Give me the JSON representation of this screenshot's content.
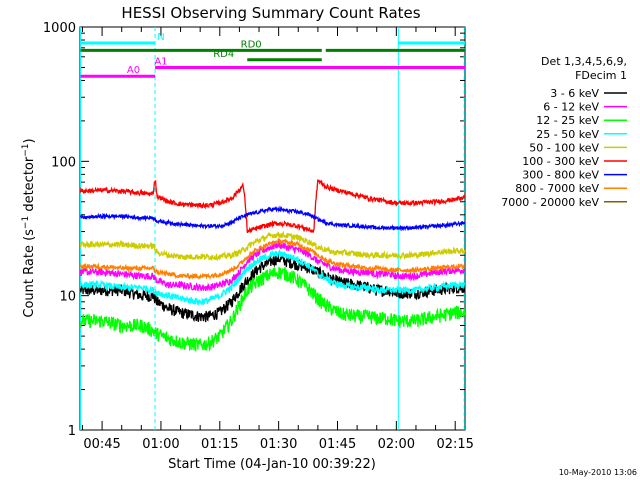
{
  "chart_data": {
    "type": "line",
    "title": "HESSI Observing Summary Count Rates",
    "xlabel": "Start Time (04-Jan-10 00:39:22)",
    "ylabel_main": "Count Rate (s",
    "ylabel_sup1": "−1",
    "ylabel_mid": " detector",
    "ylabel_sup2": "−1",
    "ylabel_end": ")",
    "yscale": "log",
    "ylim": [
      1,
      1000
    ],
    "xlim_minutes": [
      39.37,
      137.5
    ],
    "x_ticks": [
      {
        "label": "00:45",
        "minutes": 45
      },
      {
        "label": "01:00",
        "minutes": 60
      },
      {
        "label": "01:15",
        "minutes": 75
      },
      {
        "label": "01:30",
        "minutes": 90
      },
      {
        "label": "01:45",
        "minutes": 105
      },
      {
        "label": "02:00",
        "minutes": 120
      },
      {
        "label": "02:15",
        "minutes": 135
      }
    ],
    "y_ticks": [
      {
        "label": "1",
        "value": 1
      },
      {
        "label": "10",
        "value": 10
      },
      {
        "label": "100",
        "value": 100
      },
      {
        "label": "1000",
        "value": 1000
      }
    ],
    "legend_header": [
      "Det 1,3,4,5,6,9,",
      "FDecim 1"
    ],
    "legend_position": "top-right outside",
    "footer_date": "10-May-2010 13:06",
    "series": [
      {
        "name": "3 - 6 keV",
        "color": "#000000",
        "x": [
          39.5,
          45,
          50,
          55,
          58,
          59,
          62,
          65,
          70,
          72,
          75,
          78,
          80,
          82,
          85,
          88,
          90,
          92,
          95,
          98,
          100,
          102,
          104,
          106,
          110,
          113,
          115,
          118,
          120,
          125,
          130,
          135,
          137.5
        ],
        "y": [
          11,
          11,
          11,
          10,
          10,
          9,
          8,
          7.5,
          7,
          7,
          7.5,
          9,
          11,
          13,
          16,
          18,
          19,
          18,
          17,
          16,
          15,
          14,
          13,
          12.5,
          12,
          11.5,
          11,
          11,
          10.5,
          10.5,
          11,
          11.5,
          11.5
        ]
      },
      {
        "name": "6 - 12 keV",
        "color": "#ff00ff",
        "x": [
          39.5,
          45,
          50,
          55,
          58,
          59,
          62,
          65,
          70,
          72,
          75,
          78,
          80,
          82,
          85,
          88,
          90,
          92,
          95,
          98,
          100,
          102,
          104,
          106,
          110,
          113,
          115,
          118,
          120,
          125,
          130,
          135,
          137.5
        ],
        "y": [
          15,
          15,
          14.5,
          14,
          14,
          13,
          12,
          12,
          11.5,
          11.5,
          12,
          13,
          15,
          18,
          21,
          23,
          24,
          23,
          22,
          20,
          18,
          17,
          16,
          15.5,
          15,
          15,
          14.5,
          14.5,
          14,
          14,
          15,
          15.5,
          15.5
        ]
      },
      {
        "name": "12 - 25 keV",
        "color": "#00ff00",
        "x": [
          39.5,
          45,
          50,
          55,
          58,
          59,
          62,
          65,
          70,
          72,
          75,
          78,
          80,
          82,
          85,
          88,
          90,
          92,
          95,
          98,
          100,
          102,
          104,
          106,
          110,
          113,
          115,
          118,
          120,
          125,
          130,
          135,
          137.5
        ],
        "y": [
          6.5,
          6.5,
          6,
          6,
          5.5,
          5.2,
          4.8,
          4.5,
          4.3,
          4.4,
          5,
          6.5,
          8.5,
          11,
          13,
          14.5,
          15,
          14.5,
          13,
          11,
          9.5,
          8.5,
          7.8,
          7.3,
          7,
          7,
          6.8,
          6.8,
          6.5,
          6.5,
          7,
          7.5,
          7.5
        ]
      },
      {
        "name": "25 - 50 keV",
        "color": "#00ffff",
        "x": [
          39.5,
          45,
          50,
          55,
          58,
          59,
          62,
          65,
          70,
          72,
          75,
          78,
          80,
          82,
          85,
          88,
          90,
          92,
          95,
          98,
          100,
          102,
          104,
          106,
          110,
          113,
          115,
          118,
          120,
          125,
          130,
          135,
          137.5
        ],
        "y": [
          12,
          12,
          11.5,
          11.5,
          11,
          10.5,
          10,
          9.5,
          9,
          9.2,
          10,
          11.5,
          13.5,
          16,
          18.5,
          20,
          20.5,
          20,
          18.5,
          16.5,
          14.5,
          13.5,
          12.5,
          12,
          11.5,
          11.5,
          11,
          11,
          11,
          11,
          11.5,
          12,
          12
        ]
      },
      {
        "name": "50 - 100 keV",
        "color": "#cccc00",
        "x": [
          39.5,
          45,
          50,
          55,
          58,
          59,
          62,
          65,
          70,
          72,
          75,
          78,
          80,
          82,
          85,
          88,
          90,
          92,
          95,
          98,
          100,
          102,
          104,
          106,
          110,
          113,
          115,
          118,
          120,
          125,
          130,
          135,
          137.5
        ],
        "y": [
          24,
          24,
          24,
          23.5,
          23.5,
          21,
          20,
          19.5,
          19.5,
          19.5,
          19.5,
          20,
          21,
          23,
          26,
          28,
          28.5,
          28,
          27,
          25,
          23,
          22,
          21,
          21,
          20.5,
          20,
          20,
          20,
          20,
          20,
          21,
          21.5,
          21.5
        ]
      },
      {
        "name": "100 - 300 keV",
        "color": "#ff0000",
        "x": [
          39.5,
          45,
          50,
          55,
          58,
          58.5,
          59,
          62,
          65,
          70,
          72,
          75,
          78,
          81,
          82,
          85,
          88,
          90,
          92,
          95,
          99,
          100,
          102,
          104,
          106,
          110,
          113,
          115,
          118,
          120,
          125,
          130,
          135,
          137.5
        ],
        "y": [
          60,
          61,
          60,
          58,
          57,
          75,
          55,
          50,
          48,
          47,
          47,
          49,
          53,
          66,
          30,
          32,
          34,
          34.5,
          34,
          33,
          30,
          72,
          65,
          62,
          60,
          56,
          53,
          52,
          50,
          49,
          49,
          50,
          52,
          55
        ]
      },
      {
        "name": "300 - 800 keV",
        "color": "#0000ff",
        "x": [
          39.5,
          45,
          50,
          55,
          58,
          59,
          62,
          65,
          70,
          72,
          75,
          78,
          80,
          82,
          85,
          88,
          90,
          92,
          95,
          98,
          100,
          102,
          104,
          106,
          110,
          113,
          115,
          118,
          120,
          125,
          130,
          135,
          137.5
        ],
        "y": [
          38,
          39,
          39,
          38,
          38,
          36,
          35,
          34,
          33,
          33,
          33,
          35,
          38,
          40,
          42,
          44,
          44,
          43,
          42,
          40,
          37,
          35,
          34,
          33.5,
          33,
          32.5,
          32,
          32,
          32,
          32,
          33,
          34,
          35
        ]
      },
      {
        "name": "800 - 7000 keV",
        "color": "#ff8000",
        "x": [
          39.5,
          45,
          50,
          55,
          58,
          59,
          62,
          65,
          70,
          72,
          75,
          78,
          80,
          82,
          85,
          88,
          90,
          92,
          95,
          98,
          100,
          102,
          104,
          106,
          110,
          113,
          115,
          118,
          120,
          125,
          130,
          135,
          137.5
        ],
        "y": [
          16.5,
          16.5,
          16,
          16,
          16,
          15,
          14.5,
          14,
          14,
          14,
          14.5,
          15.5,
          17,
          19.5,
          22.5,
          24.5,
          25.5,
          25,
          24,
          22,
          20,
          18.5,
          17.5,
          17,
          16.5,
          16,
          16,
          15.5,
          15.5,
          15.5,
          16,
          16.5,
          16.5
        ]
      },
      {
        "name": "7000 - 20000 keV",
        "color": "#806000",
        "x": [],
        "y": []
      }
    ],
    "state_bars": [
      {
        "label": "N",
        "color": "#00ffff",
        "segments": [
          [
            39.5,
            58.5
          ],
          [
            120.5,
            137.5
          ]
        ],
        "level": 760,
        "label_at": 60
      },
      {
        "label": "RD0",
        "color": "#008000",
        "segments": [
          [
            39.5,
            101
          ],
          [
            102,
            137.5
          ]
        ],
        "level": 670,
        "label_at": 83
      },
      {
        "label": "RD4",
        "color": "#008000",
        "segments": [
          [
            82,
            101
          ]
        ],
        "level": 570,
        "label_at": 76
      },
      {
        "label": "A0",
        "color": "#ff00ff",
        "segments": [
          [
            39.5,
            58.5
          ]
        ],
        "level": 430,
        "label_at": 53
      },
      {
        "label": "A1",
        "color": "#ff00ff",
        "segments": [
          [
            58.5,
            137.5
          ]
        ],
        "level": 500,
        "label_at": 60
      }
    ],
    "vertical_markers": [
      {
        "minutes": 39.5,
        "color": "#00ffff",
        "style": "solid"
      },
      {
        "minutes": 58.5,
        "color": "#00ffff",
        "style": "dashed"
      },
      {
        "minutes": 120.5,
        "color": "#00ffff",
        "style": "solid"
      },
      {
        "minutes": 137.3,
        "color": "#00ffff",
        "style": "dashed"
      }
    ]
  }
}
